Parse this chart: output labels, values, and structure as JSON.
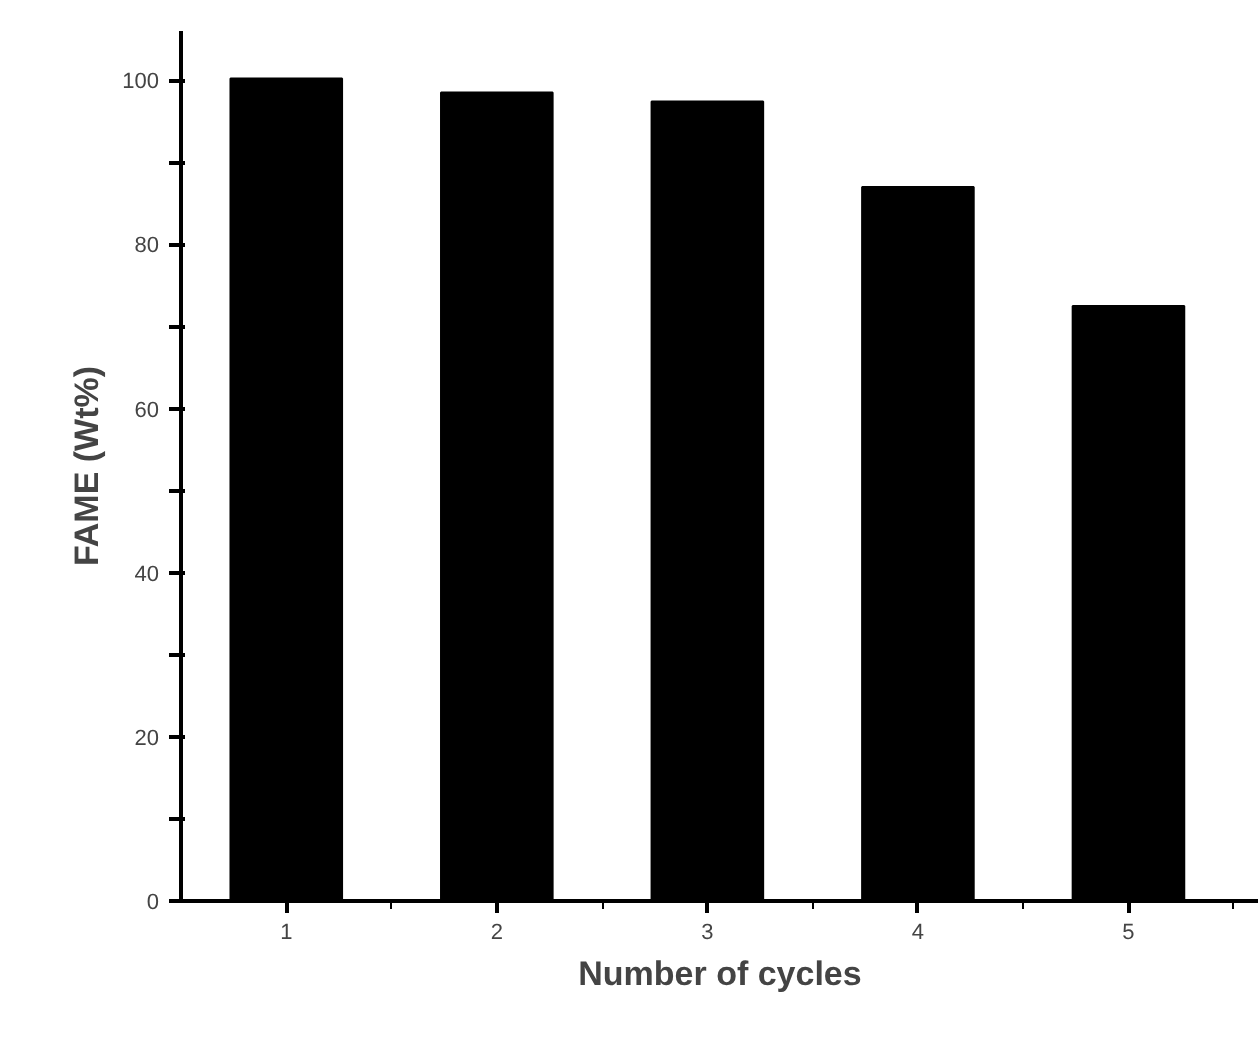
{
  "chart_data": {
    "type": "bar",
    "xlabel": "Number of cycles",
    "ylabel": "FAME (Wt%)",
    "categories": [
      "1",
      "2",
      "3",
      "4",
      "5"
    ],
    "values": [
      100.2,
      98.5,
      97.4,
      87.0,
      72.5
    ],
    "color": "#000000",
    "ylim": [
      0,
      106
    ],
    "yticks": [
      0,
      {
        "value": 10,
        "label": null
      },
      20,
      {
        "value": 30,
        "label": null
      },
      40,
      {
        "value": 50,
        "label": null
      },
      60,
      {
        "value": 70,
        "label": null
      },
      80,
      {
        "value": 90,
        "label": null
      },
      100
    ],
    "grid": false
  }
}
